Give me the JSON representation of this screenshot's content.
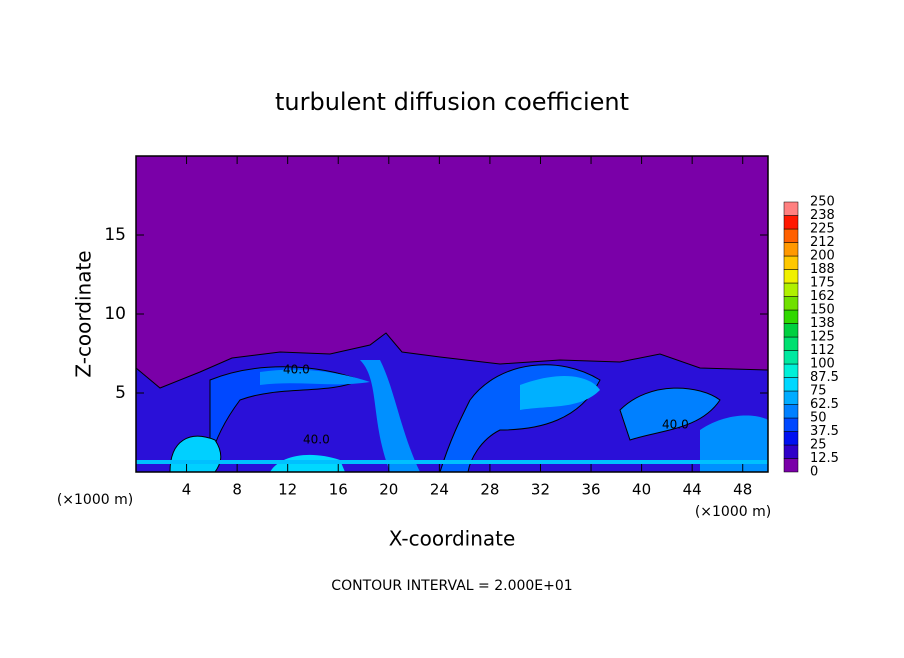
{
  "chart_data": {
    "type": "contour",
    "title": "turbulent diffusion coefficient",
    "xlabel": "X-coordinate",
    "ylabel": "Z-coordinate",
    "x_unit": "(×1000 m)",
    "annotation": "CONTOUR INTERVAL = 2.000E+01",
    "contour_labels": [
      "40.0",
      "40.0",
      "40.0"
    ],
    "xlim": [
      0,
      50
    ],
    "xticks": [
      4,
      8,
      12,
      16,
      20,
      24,
      28,
      32,
      36,
      40,
      44,
      48
    ],
    "ylim": [
      0,
      20
    ],
    "yticks": [
      5,
      10,
      15
    ],
    "colorbar": {
      "levels": [
        0,
        12.5,
        25,
        37.5,
        50,
        62.5,
        75,
        87.5,
        100,
        {
          "value": 112.5,
          "label": "112"
        },
        125,
        {
          "value": 137.5,
          "label": "138"
        },
        150,
        {
          "value": 162.5,
          "label": "162"
        },
        175,
        {
          "value": 187.5,
          "label": "188"
        },
        200,
        {
          "value": 212.5,
          "label": "212"
        },
        225,
        {
          "value": 237.5,
          "label": "238"
        },
        250
      ],
      "colors": [
        "#7a00a8",
        "#3000c8",
        "#0010f0",
        "#0048ff",
        "#0080ff",
        "#00acff",
        "#00d8ff",
        "#00f0d8",
        "#00e8a0",
        "#00e070",
        "#00d040",
        "#30d800",
        "#70e000",
        "#b0f000",
        "#f0f000",
        "#ffc800",
        "#ff9800",
        "#ff6000",
        "#ff1800",
        "#ff8080"
      ]
    }
  }
}
